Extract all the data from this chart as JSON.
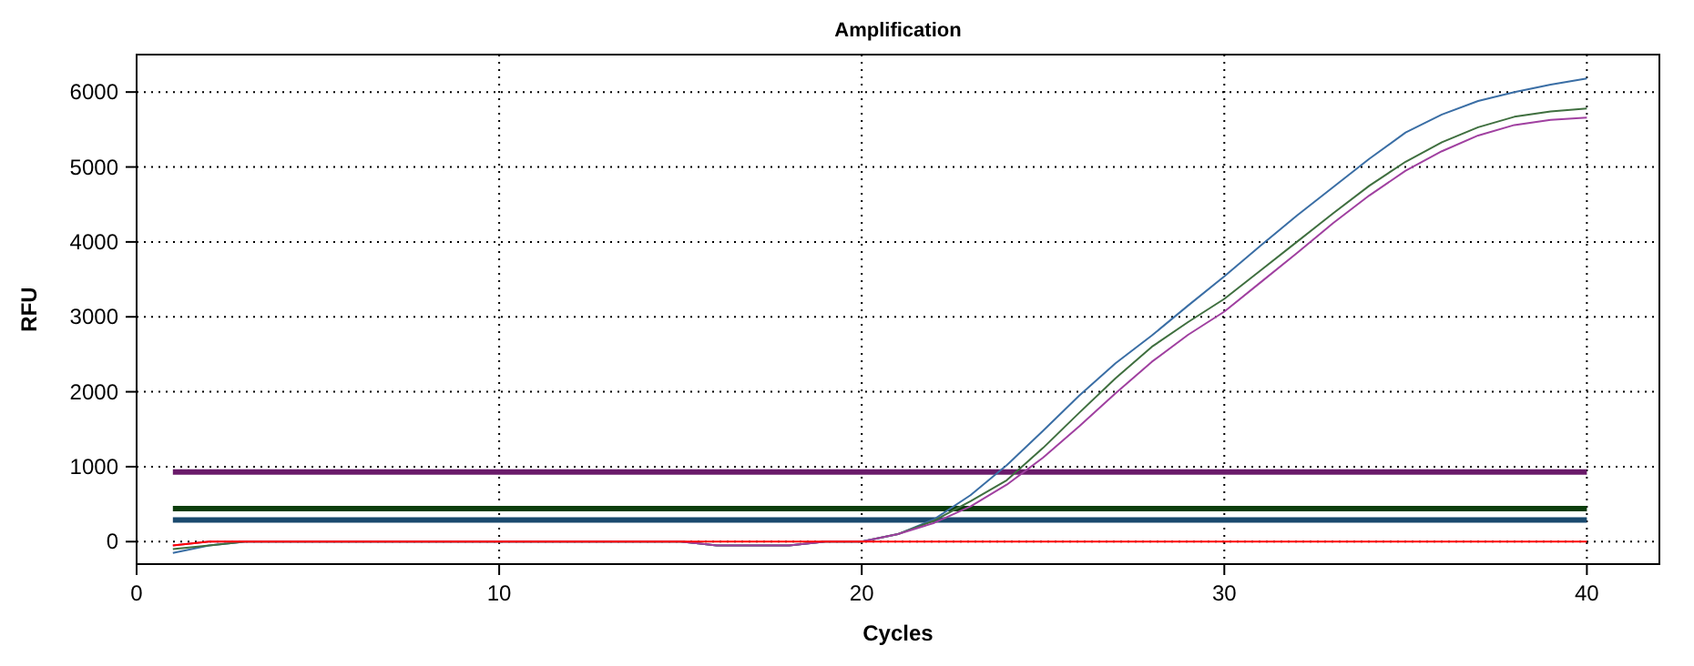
{
  "chart_data": {
    "type": "line",
    "title": "Amplification",
    "xlabel": "Cycles",
    "ylabel": "RFU",
    "x": [
      1,
      2,
      3,
      4,
      5,
      6,
      7,
      8,
      9,
      10,
      11,
      12,
      13,
      14,
      15,
      16,
      17,
      18,
      19,
      20,
      21,
      22,
      23,
      24,
      25,
      26,
      27,
      28,
      29,
      30,
      31,
      32,
      33,
      34,
      35,
      36,
      37,
      38,
      39,
      40
    ],
    "series": [
      {
        "color": "#3a6ea5",
        "values": [
          -150,
          -50,
          0,
          0,
          0,
          0,
          0,
          0,
          0,
          0,
          0,
          0,
          0,
          0,
          0,
          -50,
          -50,
          -50,
          0,
          0,
          100,
          300,
          620,
          1020,
          1480,
          1950,
          2380,
          2750,
          3150,
          3540,
          3950,
          4350,
          4730,
          5110,
          5460,
          5700,
          5880,
          6000,
          6100,
          6180
        ]
      },
      {
        "color": "#3f6f3f",
        "values": [
          -100,
          -50,
          0,
          0,
          0,
          0,
          0,
          0,
          0,
          0,
          0,
          0,
          0,
          0,
          0,
          -50,
          -50,
          -50,
          0,
          0,
          100,
          280,
          540,
          820,
          1250,
          1720,
          2180,
          2600,
          2930,
          3240,
          3620,
          4000,
          4380,
          4750,
          5070,
          5330,
          5530,
          5670,
          5740,
          5780
        ]
      },
      {
        "color": "#a040a0",
        "values": [
          -50,
          0,
          0,
          0,
          0,
          0,
          0,
          0,
          0,
          0,
          0,
          0,
          0,
          0,
          0,
          -50,
          -50,
          -50,
          0,
          0,
          100,
          250,
          470,
          760,
          1120,
          1540,
          1980,
          2400,
          2760,
          3070,
          3460,
          3850,
          4250,
          4620,
          4950,
          5210,
          5420,
          5560,
          5630,
          5660
        ]
      },
      {
        "color": "#ff0000",
        "values": [
          -50,
          0,
          0,
          0,
          0,
          0,
          0,
          0,
          0,
          0,
          0,
          0,
          0,
          0,
          0,
          0,
          0,
          0,
          0,
          0,
          0,
          0,
          0,
          0,
          0,
          0,
          0,
          0,
          0,
          0,
          0,
          0,
          0,
          0,
          0,
          0,
          0,
          0,
          0,
          0
        ]
      }
    ],
    "ref_lines": [
      {
        "axis": "y",
        "value": 930,
        "color": "#6a1b6a"
      },
      {
        "axis": "y",
        "value": 440,
        "color": "#0b3d0b"
      },
      {
        "axis": "y",
        "value": 290,
        "color": "#1a4a6e"
      }
    ],
    "xlim": [
      0,
      42
    ],
    "xticks": [
      0,
      10,
      20,
      30,
      40
    ],
    "ylim": [
      -300,
      6500
    ],
    "yticks": [
      0,
      1000,
      2000,
      3000,
      4000,
      5000,
      6000
    ],
    "grid": true,
    "marker": "none",
    "line_style": "solid"
  }
}
